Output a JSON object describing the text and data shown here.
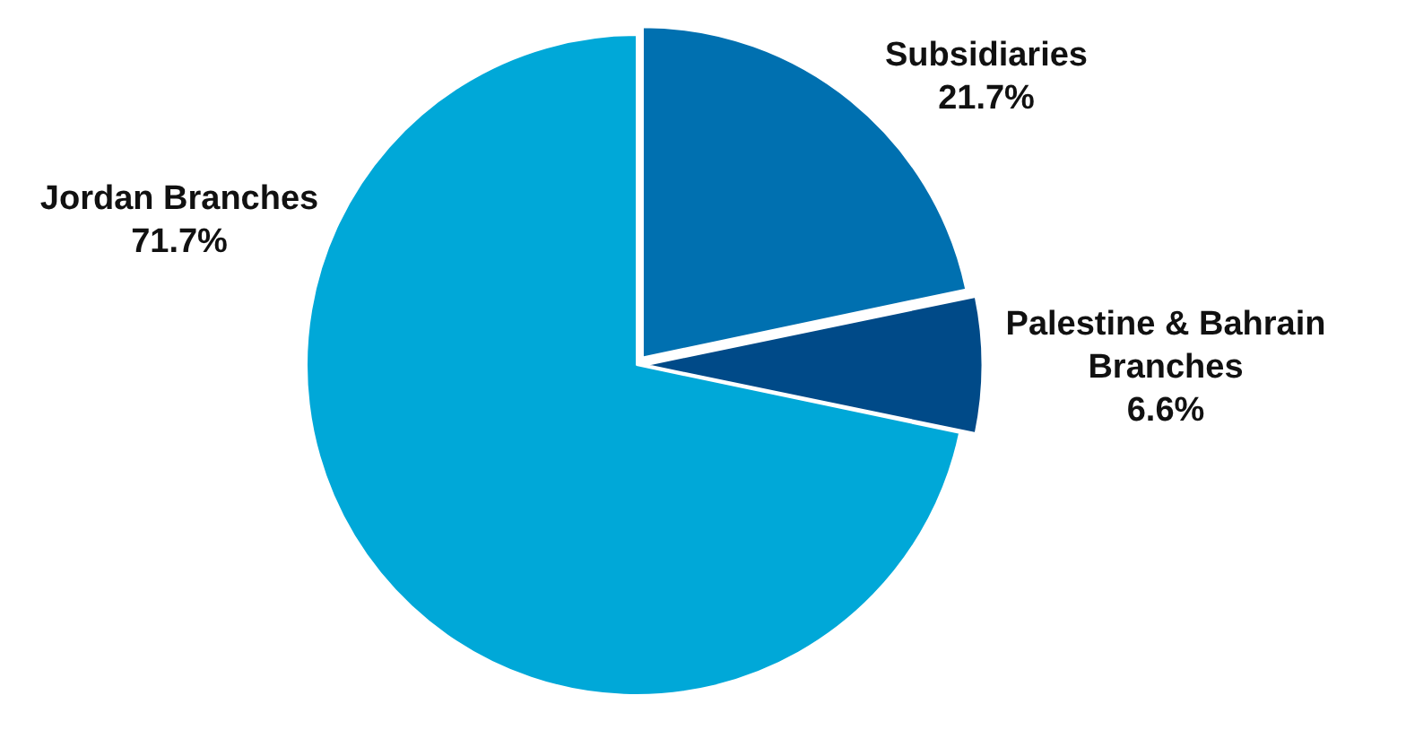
{
  "chart_data": {
    "type": "pie",
    "categories": [
      "Subsidiaries",
      "Palestine & Bahrain Branches",
      "Jordan Branches"
    ],
    "values": [
      21.7,
      6.6,
      71.7
    ],
    "colors": [
      "#0070b0",
      "#004a88",
      "#00a8d8"
    ],
    "value_labels": [
      "21.7%",
      "6.6%",
      "71.7%"
    ],
    "legend": false
  }
}
